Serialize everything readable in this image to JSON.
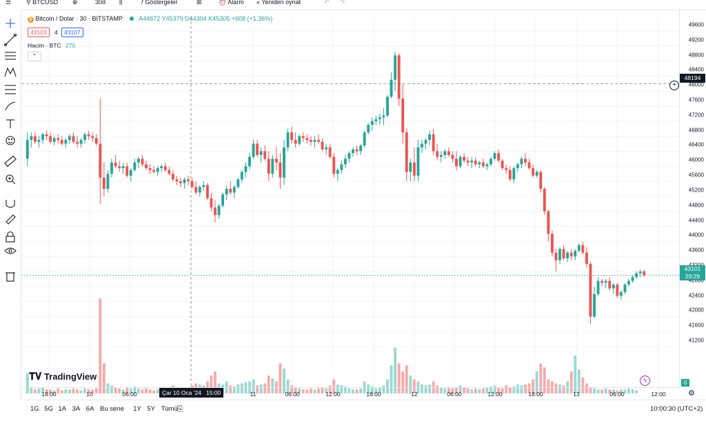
{
  "topbar": {
    "symbol": "BTCUSD",
    "interval": "30d",
    "indicators_label": "Göstergeler",
    "alarm_label": "Alarm",
    "replay_label": "Yeniden oynat"
  },
  "legend": {
    "title": "Bitcoin / Dolar · 30 · BITSTAMP",
    "ohlc": "A44672 Y45379 D44304 K45305 +608 (+1.36%)",
    "sell_price": "43103",
    "spread": "4",
    "buy_price": "43107",
    "volume_label": "Hacim · BTC",
    "volume_value": "270"
  },
  "price_axis": {
    "labels": [
      "49600",
      "49200",
      "48800",
      "48400",
      "48000",
      "47600",
      "47200",
      "46800",
      "46400",
      "46000",
      "45600",
      "45200",
      "44800",
      "44400",
      "44000",
      "43600",
      "43200",
      "42800",
      "42400",
      "42000",
      "41600",
      "41200"
    ],
    "crosshair_price": "48194",
    "current_price": "43101",
    "countdown": "29:29",
    "volume_zero": "0"
  },
  "time_axis": {
    "labels": [
      "18:00",
      "10",
      "06:00",
      "11",
      "06:00",
      "12:00",
      "18:00",
      "12",
      "06:00",
      "12:00",
      "18:00",
      "13",
      "06:00",
      "12:00"
    ],
    "crosshair_label": "Çar 10 Oca '24   15:00"
  },
  "bottom_bar": {
    "ranges": [
      "1G",
      "5G",
      "1A",
      "3A",
      "6A",
      "Bu sene",
      "1Y",
      "5Y",
      "Tümü"
    ],
    "clock": "10:00:30 (UTC+2)"
  },
  "branding": {
    "logo_text": "TradingView"
  },
  "colors": {
    "up": "#26a69a",
    "down": "#ef5350",
    "up_vol": "#9ad9d2",
    "down_vol": "#f7aaaa",
    "accent": "#2962ff"
  },
  "chart_data": {
    "type": "candlestick",
    "ylim": [
      41000,
      49800
    ],
    "candles": [
      [
        46200,
        46900,
        46000,
        46700
      ],
      [
        46700,
        46900,
        46500,
        46800
      ],
      [
        46800,
        46900,
        46600,
        46650
      ],
      [
        46650,
        46800,
        46500,
        46700
      ],
      [
        46700,
        46900,
        46600,
        46850
      ],
      [
        46850,
        46950,
        46700,
        46800
      ],
      [
        46800,
        46900,
        46600,
        46650
      ],
      [
        46650,
        46800,
        46550,
        46750
      ],
      [
        46750,
        46850,
        46600,
        46700
      ],
      [
        46700,
        46800,
        46550,
        46600
      ],
      [
        46600,
        46750,
        46500,
        46700
      ],
      [
        46700,
        46850,
        46600,
        46800
      ],
      [
        46800,
        46900,
        46600,
        46650
      ],
      [
        46650,
        46800,
        46500,
        46600
      ],
      [
        46600,
        46750,
        46500,
        46700
      ],
      [
        46700,
        46900,
        46600,
        46850
      ],
      [
        46850,
        46950,
        46700,
        46800
      ],
      [
        46800,
        46900,
        46650,
        46750
      ],
      [
        46750,
        46850,
        46550,
        46600
      ],
      [
        46600,
        47800,
        45000,
        45700
      ],
      [
        45700,
        46100,
        45200,
        45400
      ],
      [
        45400,
        45900,
        45300,
        45800
      ],
      [
        45800,
        46200,
        45700,
        46100
      ],
      [
        46100,
        46300,
        45950,
        46000
      ],
      [
        46000,
        46150,
        45850,
        45950
      ],
      [
        45950,
        46100,
        45800,
        46000
      ],
      [
        46000,
        46100,
        45700,
        45750
      ],
      [
        45750,
        45950,
        45600,
        45900
      ],
      [
        45900,
        46200,
        45850,
        46100
      ],
      [
        46100,
        46250,
        45950,
        46200
      ],
      [
        46200,
        46300,
        46000,
        46050
      ],
      [
        46050,
        46150,
        45900,
        45950
      ],
      [
        45950,
        46050,
        45800,
        45900
      ],
      [
        45900,
        46000,
        45800,
        45850
      ],
      [
        45850,
        46000,
        45750,
        45950
      ],
      [
        45950,
        46050,
        45850,
        46000
      ],
      [
        46000,
        46100,
        45850,
        45900
      ],
      [
        45900,
        46000,
        45750,
        45800
      ],
      [
        45800,
        45900,
        45600,
        45650
      ],
      [
        45650,
        45750,
        45500,
        45600
      ],
      [
        45600,
        45700,
        45450,
        45550
      ],
      [
        45550,
        45700,
        45400,
        45650
      ],
      [
        45650,
        45750,
        45500,
        45600
      ],
      [
        45600,
        45700,
        45400,
        45450
      ],
      [
        45450,
        45600,
        45250,
        45300
      ],
      [
        45300,
        45500,
        45200,
        45450
      ],
      [
        45450,
        45600,
        45350,
        45500
      ],
      [
        45500,
        45550,
        45100,
        45150
      ],
      [
        45150,
        45300,
        44800,
        44900
      ],
      [
        44900,
        45100,
        44500,
        44700
      ],
      [
        44700,
        45000,
        44600,
        44950
      ],
      [
        44950,
        45300,
        44900,
        45250
      ],
      [
        45250,
        45500,
        45100,
        45400
      ],
      [
        45400,
        45600,
        45250,
        45300
      ],
      [
        45300,
        45500,
        45150,
        45450
      ],
      [
        45450,
        45700,
        45400,
        45650
      ],
      [
        45650,
        45900,
        45550,
        45850
      ],
      [
        45850,
        46100,
        45700,
        46000
      ],
      [
        46000,
        46350,
        45900,
        46250
      ],
      [
        46250,
        46700,
        46200,
        46600
      ],
      [
        46600,
        46700,
        46250,
        46300
      ],
      [
        46300,
        46500,
        46100,
        46400
      ],
      [
        46400,
        46550,
        46150,
        46200
      ],
      [
        46200,
        46400,
        45600,
        45800
      ],
      [
        45800,
        46300,
        45700,
        46200
      ],
      [
        46200,
        46500,
        45900,
        46100
      ],
      [
        46100,
        46350,
        45400,
        45700
      ],
      [
        45700,
        46700,
        45500,
        46500
      ],
      [
        46500,
        47000,
        46400,
        46900
      ],
      [
        46900,
        47050,
        46600,
        46700
      ],
      [
        46700,
        46900,
        46500,
        46600
      ],
      [
        46600,
        46850,
        46550,
        46800
      ],
      [
        46800,
        46900,
        46650,
        46750
      ],
      [
        46750,
        46850,
        46600,
        46700
      ],
      [
        46700,
        46800,
        46550,
        46650
      ],
      [
        46650,
        46800,
        46500,
        46700
      ],
      [
        46700,
        46850,
        46600,
        46650
      ],
      [
        46650,
        46750,
        46400,
        46450
      ],
      [
        46450,
        46600,
        46300,
        46500
      ],
      [
        46500,
        46600,
        46200,
        46250
      ],
      [
        46250,
        46350,
        45700,
        45800
      ],
      [
        45800,
        45950,
        45600,
        45900
      ],
      [
        45900,
        46150,
        45800,
        46050
      ],
      [
        46050,
        46300,
        45950,
        46200
      ],
      [
        46200,
        46400,
        46100,
        46350
      ],
      [
        46350,
        46500,
        46250,
        46450
      ],
      [
        46450,
        46550,
        46300,
        46400
      ],
      [
        46400,
        46600,
        46300,
        46550
      ],
      [
        46550,
        46950,
        46500,
        46900
      ],
      [
        46900,
        47150,
        46850,
        47100
      ],
      [
        47100,
        47300,
        46950,
        47200
      ],
      [
        47200,
        47350,
        47100,
        47250
      ],
      [
        47250,
        47400,
        47100,
        47300
      ],
      [
        47300,
        47550,
        47100,
        47350
      ],
      [
        47350,
        47900,
        47300,
        47850
      ],
      [
        47850,
        48500,
        47800,
        48300
      ],
      [
        48300,
        49050,
        48000,
        48950
      ],
      [
        48950,
        49000,
        47600,
        47800
      ],
      [
        47800,
        48200,
        46600,
        46900
      ],
      [
        46900,
        47000,
        45600,
        45850
      ],
      [
        45850,
        46200,
        45600,
        46100
      ],
      [
        46100,
        46500,
        45600,
        45750
      ],
      [
        45750,
        46700,
        45600,
        46500
      ],
      [
        46500,
        46700,
        46350,
        46600
      ],
      [
        46600,
        46750,
        46450,
        46700
      ],
      [
        46700,
        46950,
        46550,
        46850
      ],
      [
        46850,
        47000,
        46300,
        46400
      ],
      [
        46400,
        46600,
        46150,
        46250
      ],
      [
        46250,
        46400,
        46100,
        46300
      ],
      [
        46300,
        46450,
        46200,
        46400
      ],
      [
        46400,
        46500,
        46250,
        46300
      ],
      [
        46300,
        46400,
        46100,
        46200
      ],
      [
        46200,
        46400,
        45900,
        46000
      ],
      [
        46000,
        46300,
        45950,
        46250
      ],
      [
        46250,
        46350,
        46100,
        46150
      ],
      [
        46150,
        46250,
        46000,
        46100
      ],
      [
        46100,
        46250,
        45950,
        46150
      ],
      [
        46150,
        46250,
        46000,
        46050
      ],
      [
        46050,
        46150,
        45950,
        46100
      ],
      [
        46100,
        46200,
        45950,
        46000
      ],
      [
        46000,
        46100,
        45900,
        46050
      ],
      [
        46050,
        46250,
        46000,
        46200
      ],
      [
        46200,
        46400,
        46150,
        46350
      ],
      [
        46350,
        46450,
        46100,
        46150
      ],
      [
        46150,
        46200,
        45900,
        45950
      ],
      [
        45950,
        46050,
        45800,
        45900
      ],
      [
        45900,
        46000,
        45600,
        45650
      ],
      [
        45650,
        46000,
        45550,
        45950
      ],
      [
        45950,
        46100,
        45850,
        46050
      ],
      [
        46050,
        46250,
        45950,
        46200
      ],
      [
        46200,
        46350,
        46000,
        46100
      ],
      [
        46100,
        46200,
        45900,
        45950
      ],
      [
        45950,
        46050,
        45700,
        45750
      ],
      [
        45750,
        45900,
        45700,
        45850
      ],
      [
        45850,
        45900,
        45300,
        45400
      ],
      [
        45400,
        45450,
        44700,
        44800
      ],
      [
        44800,
        44850,
        44000,
        44200
      ],
      [
        44200,
        44300,
        43600,
        43700
      ],
      [
        43700,
        43800,
        43200,
        43500
      ],
      [
        43500,
        43850,
        43400,
        43800
      ],
      [
        43800,
        43900,
        43500,
        43550
      ],
      [
        43550,
        43750,
        43450,
        43700
      ],
      [
        43700,
        43800,
        43500,
        43600
      ],
      [
        43600,
        43800,
        43500,
        43750
      ],
      [
        43750,
        43950,
        43700,
        43900
      ],
      [
        43900,
        44000,
        43650,
        43700
      ],
      [
        43700,
        43850,
        43300,
        43400
      ],
      [
        43400,
        43450,
        41800,
        42000
      ],
      [
        42000,
        42800,
        41950,
        42600
      ],
      [
        42600,
        43050,
        42550,
        42950
      ],
      [
        42950,
        43000,
        42800,
        42900
      ],
      [
        42900,
        43000,
        42750,
        42950
      ],
      [
        42950,
        43050,
        42700,
        42750
      ],
      [
        42750,
        42900,
        42600,
        42850
      ],
      [
        42850,
        42900,
        42500,
        42550
      ],
      [
        42550,
        42700,
        42450,
        42650
      ],
      [
        42650,
        42900,
        42600,
        42850
      ],
      [
        42850,
        43000,
        42800,
        42950
      ],
      [
        42950,
        43100,
        42900,
        43050
      ],
      [
        43050,
        43200,
        43000,
        43150
      ],
      [
        43150,
        43250,
        43050,
        43200
      ],
      [
        43200,
        43250,
        43050,
        43101
      ]
    ],
    "volumes": [
      20,
      6,
      4,
      5,
      6,
      4,
      4,
      3,
      5,
      3,
      4,
      4,
      5,
      4,
      3,
      5,
      4,
      4,
      5,
      95,
      30,
      10,
      8,
      6,
      5,
      4,
      6,
      5,
      7,
      5,
      4,
      5,
      4,
      3,
      4,
      4,
      5,
      6,
      8,
      6,
      5,
      5,
      6,
      8,
      10,
      9,
      8,
      12,
      18,
      22,
      10,
      9,
      12,
      8,
      7,
      9,
      10,
      11,
      12,
      14,
      8,
      9,
      10,
      18,
      15,
      12,
      30,
      25,
      14,
      8,
      6,
      5,
      4,
      4,
      5,
      4,
      5,
      6,
      5,
      8,
      14,
      9,
      8,
      7,
      5,
      4,
      4,
      5,
      12,
      9,
      7,
      5,
      6,
      8,
      14,
      28,
      46,
      30,
      22,
      28,
      18,
      14,
      12,
      9,
      8,
      9,
      12,
      8,
      6,
      5,
      6,
      5,
      6,
      8,
      6,
      5,
      4,
      5,
      4,
      5,
      6,
      7,
      8,
      6,
      5,
      8,
      6,
      7,
      9,
      8,
      9,
      10,
      14,
      22,
      30,
      26,
      14,
      12,
      10,
      9,
      8,
      12,
      22,
      38,
      24,
      16,
      10,
      6,
      5,
      4,
      4,
      5,
      4,
      4,
      3,
      4,
      4,
      5,
      4,
      3
    ]
  }
}
